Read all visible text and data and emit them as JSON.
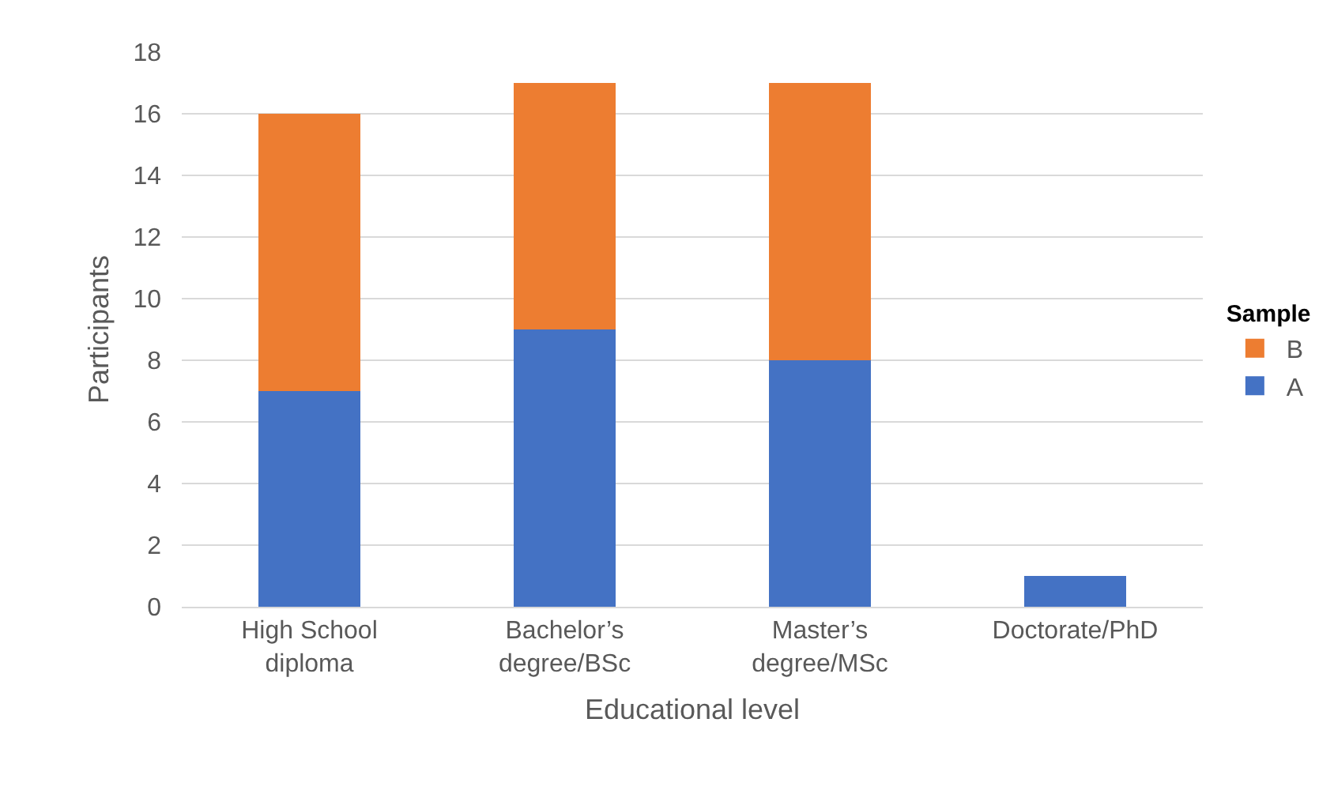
{
  "chart_data": {
    "type": "bar",
    "stacked": true,
    "xlabel": "Educational level",
    "ylabel": "Participants",
    "legend_title": "Sample",
    "categories": [
      "High School diploma",
      "Bachelor’s degree/BSc",
      "Master’s degree/MSc",
      "Doctorate/PhD"
    ],
    "series": [
      {
        "name": "A",
        "color": "#4472c4",
        "values": [
          7,
          9,
          8,
          1
        ]
      },
      {
        "name": "B",
        "color": "#ed7d31",
        "values": [
          9,
          8,
          9,
          null
        ]
      }
    ],
    "ylim": [
      0,
      18
    ],
    "yticks": [
      0,
      2,
      4,
      6,
      8,
      10,
      12,
      14,
      16,
      18
    ],
    "grid": "y",
    "legend": "right"
  }
}
